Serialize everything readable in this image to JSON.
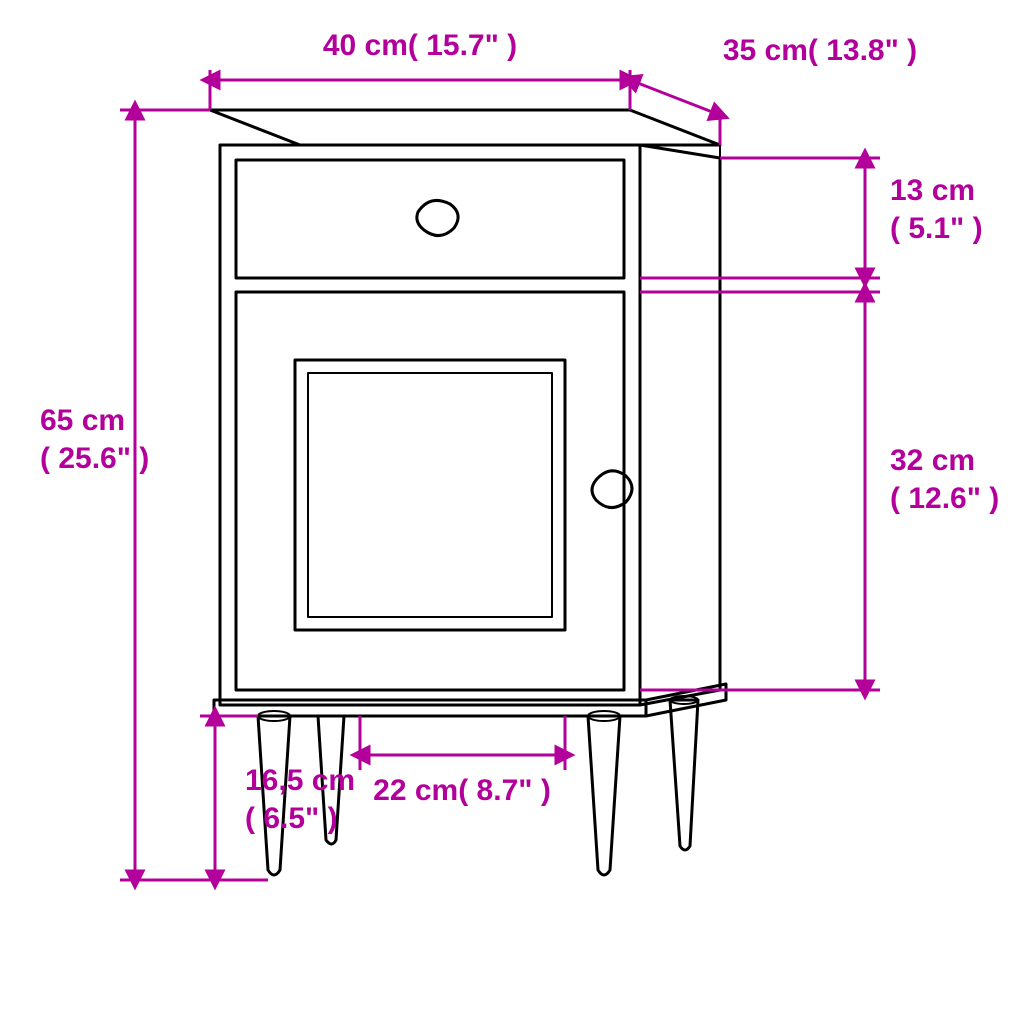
{
  "accent": "#b3009b",
  "labels": {
    "width": "40 cm( 15.7\" )",
    "depth": "35 cm( 13.8\" )",
    "height": "65 cm( 25.6\" )",
    "drawer": "13 cm( 5.1\" )",
    "door": "32 cm( 12.6\" )",
    "leg": "16,5 cm( 6.5\" )",
    "panel_width": "22 cm( 8.7\" )"
  }
}
